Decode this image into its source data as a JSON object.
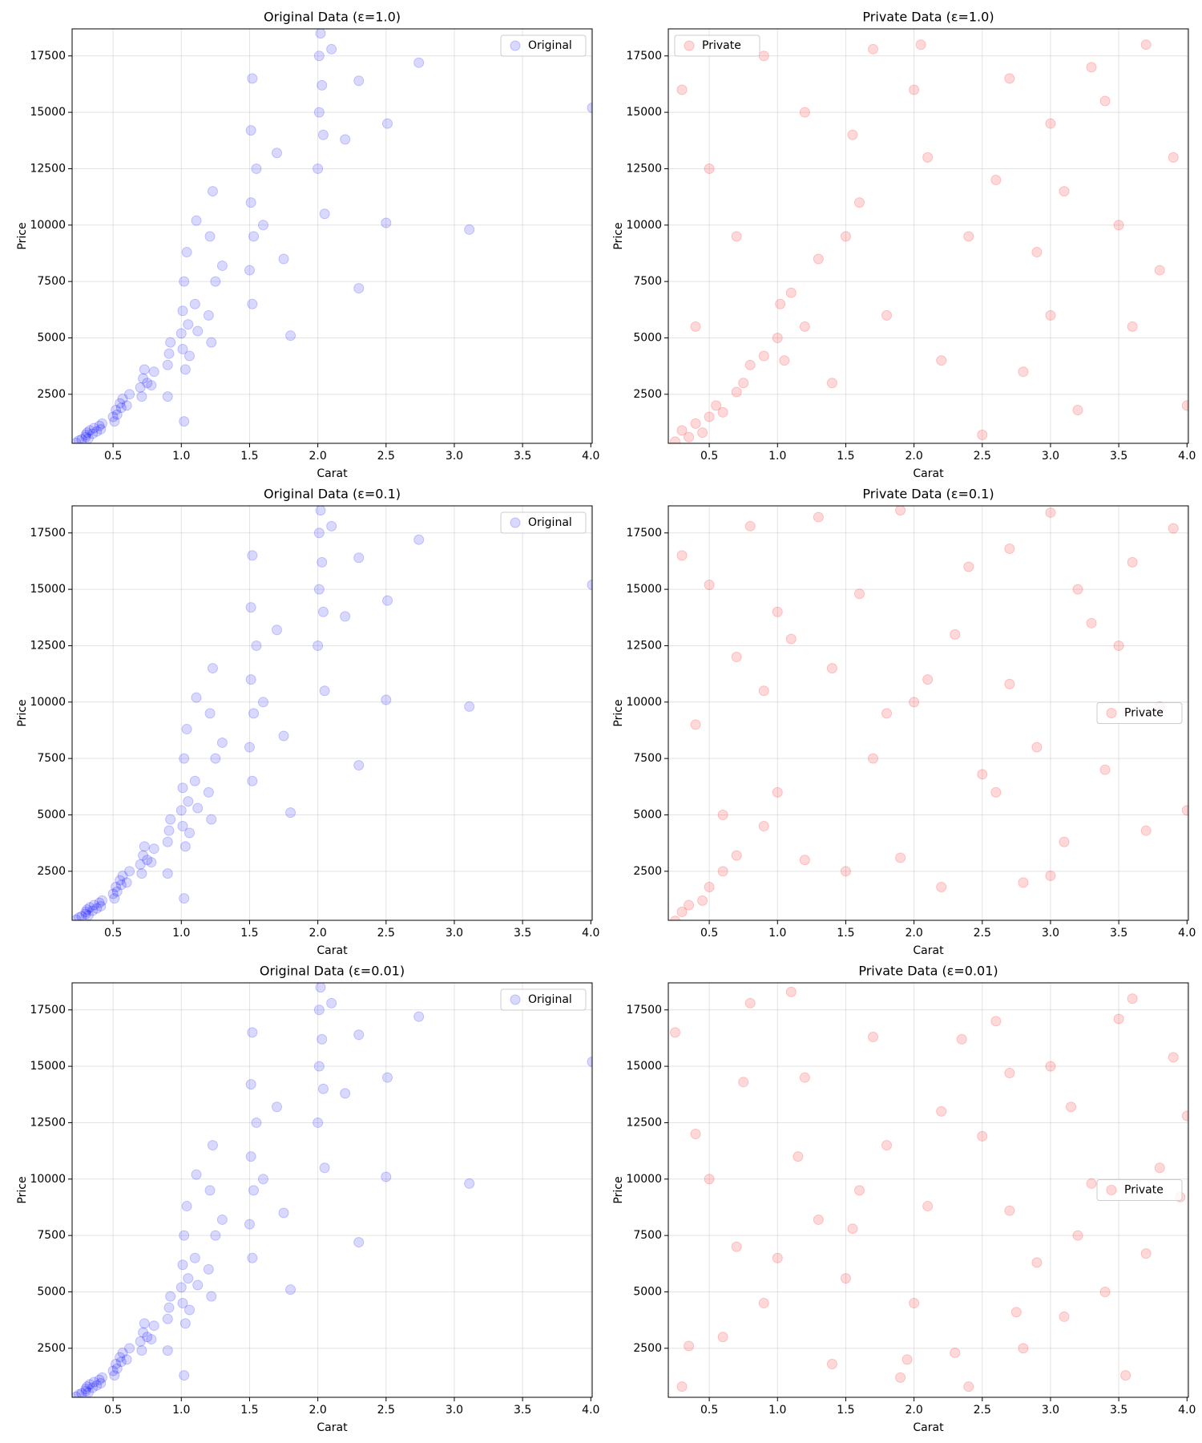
{
  "chart_data": [
    {
      "type": "scatter",
      "title": "Original Data (ε=1.0)",
      "xlabel": "Carat",
      "ylabel": "Price",
      "grid": true,
      "legend": "upper right",
      "xlim": [
        0.2,
        4.01
      ],
      "ylim": [
        326,
        18700
      ],
      "xticks": [
        0.5,
        {
          "value": 1,
          "label": "1.0"
        },
        1.5,
        {
          "value": 2,
          "label": "2.0"
        },
        2.5,
        {
          "value": 3,
          "label": "3.0"
        },
        3.5,
        {
          "value": 4,
          "label": "4.0"
        }
      ],
      "yticks": [
        2500,
        5000,
        7500,
        10000,
        12500,
        15000,
        17500
      ],
      "series": [
        {
          "name": "Original",
          "color": "blue",
          "x": [
            0.23,
            0.25,
            0.27,
            0.3,
            0.3,
            0.31,
            0.32,
            0.33,
            0.35,
            0.36,
            0.38,
            0.4,
            0.41,
            0.42,
            0.5,
            0.51,
            0.52,
            0.53,
            0.55,
            0.56,
            0.57,
            0.6,
            0.62,
            0.7,
            0.71,
            0.72,
            0.73,
            0.75,
            0.78,
            0.8,
            0.9,
            0.91,
            0.92,
            1.0,
            1.01,
            1.01,
            1.02,
            1.03,
            1.04,
            1.05,
            1.06,
            1.1,
            1.11,
            1.12,
            1.2,
            1.21,
            1.22,
            1.23,
            1.25,
            1.3,
            1.5,
            1.51,
            1.51,
            1.52,
            1.52,
            1.53,
            1.55,
            1.6,
            1.7,
            1.75,
            2.0,
            2.01,
            2.01,
            2.02,
            2.03,
            2.04,
            2.05,
            2.1,
            2.2,
            2.3,
            2.5,
            2.51,
            2.74,
            3.11,
            4.01,
            1.02,
            0.9,
            1.8,
            2.3
          ],
          "y": [
            350,
            450,
            500,
            600,
            700,
            800,
            550,
            900,
            750,
            1000,
            850,
            1100,
            950,
            1200,
            1500,
            1300,
            1800,
            1600,
            2100,
            1900,
            2300,
            2000,
            2500,
            2800,
            2400,
            3200,
            3600,
            3000,
            2900,
            3500,
            3800,
            4300,
            4800,
            5200,
            6200,
            4500,
            7500,
            3600,
            8800,
            5600,
            4200,
            6500,
            10200,
            5300,
            6000,
            9500,
            4800,
            11500,
            7500,
            8200,
            8000,
            11000,
            14200,
            6500,
            16500,
            9500,
            12500,
            10000,
            13200,
            8500,
            12500,
            15000,
            17500,
            18500,
            16200,
            14000,
            10500,
            17800,
            13800,
            16400,
            10100,
            14500,
            17200,
            9800,
            15200,
            1300,
            2400,
            5100,
            7200
          ]
        }
      ]
    },
    {
      "type": "scatter",
      "title": "Private Data (ε=1.0)",
      "xlabel": "Carat",
      "ylabel": "Price",
      "grid": true,
      "legend": "upper left",
      "xlim": [
        0.2,
        4.01
      ],
      "ylim": [
        326,
        18700
      ],
      "xticks": [
        0.5,
        {
          "value": 1,
          "label": "1.0"
        },
        1.5,
        {
          "value": 2,
          "label": "2.0"
        },
        2.5,
        {
          "value": 3,
          "label": "3.0"
        },
        3.5,
        {
          "value": 4,
          "label": "4.0"
        }
      ],
      "yticks": [
        2500,
        5000,
        7500,
        10000,
        12500,
        15000,
        17500
      ],
      "series": [
        {
          "name": "Private",
          "color": "red",
          "x": [
            0.25,
            0.3,
            0.35,
            0.4,
            0.45,
            0.5,
            0.55,
            0.6,
            0.7,
            0.75,
            0.8,
            0.9,
            1.0,
            1.02,
            1.05,
            1.1,
            1.2,
            1.3,
            1.5,
            1.55,
            1.6,
            2.0,
            2.05,
            2.1,
            0.3,
            0.5,
            0.7,
            0.9,
            1.2,
            1.4,
            1.8,
            2.2,
            2.4,
            2.6,
            2.8,
            3.0,
            3.0,
            3.2,
            3.3,
            3.5,
            3.6,
            3.8,
            3.9,
            4.0,
            2.7,
            3.4,
            0.4,
            2.5,
            3.7,
            1.7,
            2.9,
            3.1
          ],
          "y": [
            400,
            900,
            600,
            1200,
            800,
            1500,
            2000,
            1700,
            2600,
            3000,
            3800,
            4200,
            5000,
            6500,
            4000,
            7000,
            5500,
            8500,
            9500,
            14000,
            11000,
            16000,
            18000,
            13000,
            16000,
            12500,
            9500,
            17500,
            15000,
            3000,
            6000,
            4000,
            9500,
            12000,
            3500,
            14500,
            6000,
            1800,
            17000,
            10000,
            5500,
            8000,
            13000,
            2000,
            16500,
            15500,
            5500,
            700,
            18000,
            17800,
            8800,
            11500
          ]
        }
      ]
    },
    {
      "type": "scatter",
      "title": "Original Data (ε=0.1)",
      "xlabel": "Carat",
      "ylabel": "Price",
      "grid": true,
      "legend": "upper right",
      "xlim": [
        0.2,
        4.01
      ],
      "ylim": [
        326,
        18700
      ],
      "xticks": [
        0.5,
        {
          "value": 1,
          "label": "1.0"
        },
        1.5,
        {
          "value": 2,
          "label": "2.0"
        },
        2.5,
        {
          "value": 3,
          "label": "3.0"
        },
        3.5,
        {
          "value": 4,
          "label": "4.0"
        }
      ],
      "yticks": [
        2500,
        5000,
        7500,
        10000,
        12500,
        15000,
        17500
      ],
      "series": [
        {
          "name": "Original",
          "color": "blue",
          "x": [
            0.23,
            0.25,
            0.27,
            0.3,
            0.3,
            0.31,
            0.32,
            0.33,
            0.35,
            0.36,
            0.38,
            0.4,
            0.41,
            0.42,
            0.5,
            0.51,
            0.52,
            0.53,
            0.55,
            0.56,
            0.57,
            0.6,
            0.62,
            0.7,
            0.71,
            0.72,
            0.73,
            0.75,
            0.78,
            0.8,
            0.9,
            0.91,
            0.92,
            1.0,
            1.01,
            1.01,
            1.02,
            1.03,
            1.04,
            1.05,
            1.06,
            1.1,
            1.11,
            1.12,
            1.2,
            1.21,
            1.22,
            1.23,
            1.25,
            1.3,
            1.5,
            1.51,
            1.51,
            1.52,
            1.52,
            1.53,
            1.55,
            1.6,
            1.7,
            1.75,
            2.0,
            2.01,
            2.01,
            2.02,
            2.03,
            2.04,
            2.05,
            2.1,
            2.2,
            2.3,
            2.5,
            2.51,
            2.74,
            3.11,
            4.01,
            1.02,
            0.9,
            1.8,
            2.3
          ],
          "y": [
            350,
            450,
            500,
            600,
            700,
            800,
            550,
            900,
            750,
            1000,
            850,
            1100,
            950,
            1200,
            1500,
            1300,
            1800,
            1600,
            2100,
            1900,
            2300,
            2000,
            2500,
            2800,
            2400,
            3200,
            3600,
            3000,
            2900,
            3500,
            3800,
            4300,
            4800,
            5200,
            6200,
            4500,
            7500,
            3600,
            8800,
            5600,
            4200,
            6500,
            10200,
            5300,
            6000,
            9500,
            4800,
            11500,
            7500,
            8200,
            8000,
            11000,
            14200,
            6500,
            16500,
            9500,
            12500,
            10000,
            13200,
            8500,
            12500,
            15000,
            17500,
            18500,
            16200,
            14000,
            10500,
            17800,
            13800,
            16400,
            10100,
            14500,
            17200,
            9800,
            15200,
            1300,
            2400,
            5100,
            7200
          ]
        }
      ]
    },
    {
      "type": "scatter",
      "title": "Private Data (ε=0.1)",
      "xlabel": "Carat",
      "ylabel": "Price",
      "grid": true,
      "legend": "center right",
      "xlim": [
        0.2,
        4.01
      ],
      "ylim": [
        326,
        18700
      ],
      "xticks": [
        0.5,
        {
          "value": 1,
          "label": "1.0"
        },
        1.5,
        {
          "value": 2,
          "label": "2.0"
        },
        2.5,
        {
          "value": 3,
          "label": "3.0"
        },
        3.5,
        {
          "value": 4,
          "label": "4.0"
        }
      ],
      "yticks": [
        2500,
        5000,
        7500,
        10000,
        12500,
        15000,
        17500
      ],
      "series": [
        {
          "name": "Private",
          "color": "red",
          "x": [
            0.25,
            0.3,
            0.35,
            0.45,
            0.5,
            0.6,
            0.7,
            0.9,
            1.0,
            0.3,
            0.5,
            0.8,
            1.1,
            1.3,
            1.6,
            1.9,
            2.1,
            2.4,
            2.7,
            3.0,
            3.3,
            3.6,
            3.9,
            0.4,
            0.7,
            1.0,
            1.4,
            1.7,
            2.0,
            2.3,
            2.6,
            2.9,
            3.2,
            3.5,
            3.8,
            0.6,
            1.2,
            1.8,
            2.5,
            2.8,
            3.1,
            3.4,
            3.7,
            4.0,
            1.5,
            2.2,
            0.9,
            3.0,
            2.7,
            1.9
          ],
          "y": [
            300,
            700,
            1000,
            1200,
            1800,
            2500,
            3200,
            4500,
            6000,
            16500,
            15200,
            17800,
            12800,
            18200,
            14800,
            18500,
            11000,
            16000,
            10800,
            18400,
            13500,
            16200,
            17700,
            9000,
            12000,
            14000,
            11500,
            7500,
            10000,
            13000,
            6000,
            8000,
            15000,
            12500,
            9800,
            5000,
            3000,
            9500,
            6800,
            2000,
            3800,
            7000,
            4300,
            5200,
            2500,
            1800,
            10500,
            2300,
            16800,
            3100
          ]
        }
      ]
    },
    {
      "type": "scatter",
      "title": "Original Data (ε=0.01)",
      "xlabel": "Carat",
      "ylabel": "Price",
      "grid": true,
      "legend": "upper right",
      "xlim": [
        0.2,
        4.01
      ],
      "ylim": [
        326,
        18700
      ],
      "xticks": [
        0.5,
        {
          "value": 1,
          "label": "1.0"
        },
        1.5,
        {
          "value": 2,
          "label": "2.0"
        },
        2.5,
        {
          "value": 3,
          "label": "3.0"
        },
        3.5,
        {
          "value": 4,
          "label": "4.0"
        }
      ],
      "yticks": [
        2500,
        5000,
        7500,
        10000,
        12500,
        15000,
        17500
      ],
      "series": [
        {
          "name": "Original",
          "color": "blue",
          "x": [
            0.23,
            0.25,
            0.27,
            0.3,
            0.3,
            0.31,
            0.32,
            0.33,
            0.35,
            0.36,
            0.38,
            0.4,
            0.41,
            0.42,
            0.5,
            0.51,
            0.52,
            0.53,
            0.55,
            0.56,
            0.57,
            0.6,
            0.62,
            0.7,
            0.71,
            0.72,
            0.73,
            0.75,
            0.78,
            0.8,
            0.9,
            0.91,
            0.92,
            1.0,
            1.01,
            1.01,
            1.02,
            1.03,
            1.04,
            1.05,
            1.06,
            1.1,
            1.11,
            1.12,
            1.2,
            1.21,
            1.22,
            1.23,
            1.25,
            1.3,
            1.5,
            1.51,
            1.51,
            1.52,
            1.52,
            1.53,
            1.55,
            1.6,
            1.7,
            1.75,
            2.0,
            2.01,
            2.01,
            2.02,
            2.03,
            2.04,
            2.05,
            2.1,
            2.2,
            2.3,
            2.5,
            2.51,
            2.74,
            3.11,
            4.01,
            1.02,
            0.9,
            1.8,
            2.3
          ],
          "y": [
            350,
            450,
            500,
            600,
            700,
            800,
            550,
            900,
            750,
            1000,
            850,
            1100,
            950,
            1200,
            1500,
            1300,
            1800,
            1600,
            2100,
            1900,
            2300,
            2000,
            2500,
            2800,
            2400,
            3200,
            3600,
            3000,
            2900,
            3500,
            3800,
            4300,
            4800,
            5200,
            6200,
            4500,
            7500,
            3600,
            8800,
            5600,
            4200,
            6500,
            10200,
            5300,
            6000,
            9500,
            4800,
            11500,
            7500,
            8200,
            8000,
            11000,
            14200,
            6500,
            16500,
            9500,
            12500,
            10000,
            13200,
            8500,
            12500,
            15000,
            17500,
            18500,
            16200,
            14000,
            10500,
            17800,
            13800,
            16400,
            10100,
            14500,
            17200,
            9800,
            15200,
            1300,
            2400,
            5100,
            7200
          ]
        }
      ]
    },
    {
      "type": "scatter",
      "title": "Private Data (ε=0.01)",
      "xlabel": "Carat",
      "ylabel": "Price",
      "grid": true,
      "legend": "center right",
      "xlim": [
        0.2,
        4.01
      ],
      "ylim": [
        326,
        18700
      ],
      "xticks": [
        0.5,
        {
          "value": 1,
          "label": "1.0"
        },
        1.5,
        {
          "value": 2,
          "label": "2.0"
        },
        2.5,
        {
          "value": 3,
          "label": "3.0"
        },
        3.5,
        {
          "value": 4,
          "label": "4.0"
        }
      ],
      "yticks": [
        2500,
        5000,
        7500,
        10000,
        12500,
        15000,
        17500
      ],
      "series": [
        {
          "name": "Private",
          "color": "red",
          "x": [
            0.25,
            0.4,
            0.6,
            0.8,
            1.0,
            1.2,
            1.4,
            1.6,
            1.8,
            2.0,
            2.2,
            2.4,
            2.6,
            2.8,
            3.0,
            3.2,
            3.4,
            3.6,
            3.8,
            4.0,
            0.3,
            0.5,
            0.7,
            0.9,
            1.1,
            1.3,
            1.5,
            1.7,
            1.9,
            2.1,
            2.3,
            2.5,
            2.7,
            2.9,
            3.1,
            3.3,
            3.5,
            3.7,
            3.9,
            0.35,
            0.75,
            1.15,
            1.55,
            1.95,
            2.35,
            2.75,
            3.15,
            3.55,
            3.95,
            2.7
          ],
          "y": [
            16500,
            12000,
            3000,
            17800,
            6500,
            14500,
            1800,
            9500,
            11500,
            4500,
            13000,
            800,
            17000,
            2500,
            15000,
            7500,
            5000,
            18000,
            10500,
            12800,
            800,
            10000,
            7000,
            4500,
            18300,
            8200,
            5600,
            16300,
            1200,
            8800,
            2300,
            11900,
            14700,
            6300,
            3900,
            9800,
            17100,
            6700,
            15400,
            2600,
            14300,
            11000,
            7800,
            2000,
            16200,
            4100,
            13200,
            1300,
            9200,
            8600
          ]
        }
      ]
    }
  ]
}
